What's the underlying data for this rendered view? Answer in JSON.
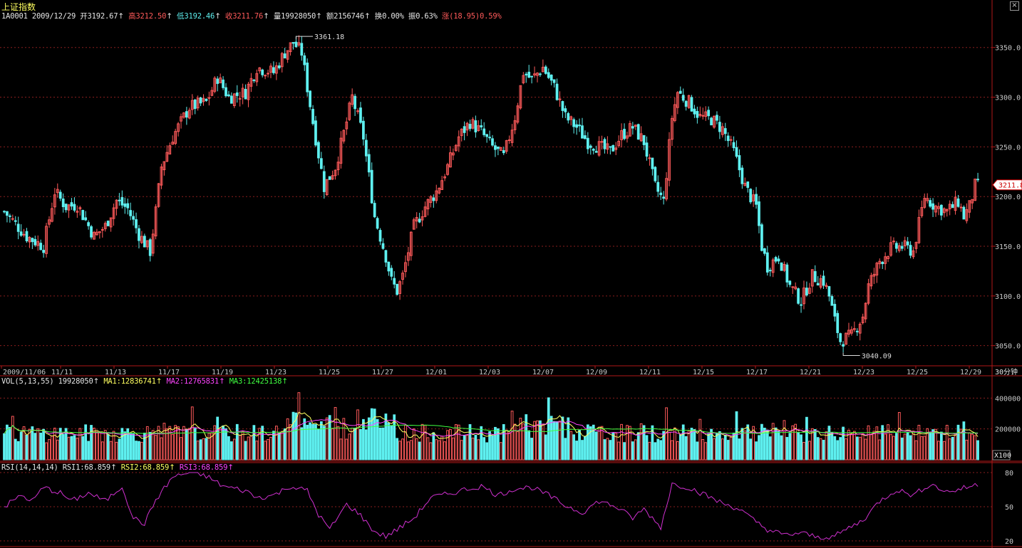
{
  "window": {
    "title": "上证指数",
    "close_glyph": "×"
  },
  "header": {
    "code": "1A0001",
    "date": "2009/12/29",
    "open_label": "开",
    "open": "3192.67",
    "high_label": "高",
    "high": "3212.50",
    "low_label": "低",
    "low": "3192.46",
    "close_label": "收",
    "close": "3211.76",
    "volume_label": "量",
    "volume": "19928050",
    "amount_label": "额",
    "amount": "2156746",
    "turnover_label": "换",
    "turnover": "0.00%",
    "amplitude_label": "振",
    "amplitude": "0.63%",
    "change_label": "涨",
    "change": "(18.95)",
    "change_pct": "0.59%",
    "up_arrow": "↑"
  },
  "price_panel": {
    "y_ticks": [
      "3350.0",
      "3300.0",
      "3250.0",
      "3200.0",
      "3150.0",
      "3100.0",
      "3050.0"
    ],
    "ylim": [
      3040,
      3361
    ],
    "current_price_tag": "3211.8",
    "max_annotation": "3361.18",
    "min_annotation": "3040.09",
    "x_labels": [
      "2009/11/06",
      "11/11",
      "11/13",
      "11/17",
      "11/19",
      "11/23",
      "11/25",
      "11/27",
      "12/01",
      "12/03",
      "12/07",
      "12/09",
      "12/11",
      "12/15",
      "12/17",
      "12/21",
      "12/23",
      "12/25",
      "12/29"
    ],
    "period_label": "30分钟"
  },
  "volume_panel": {
    "indicator": "VOL(5,13,55)",
    "value": "19928050",
    "ma1_label": "MA1:",
    "ma1": "12836741",
    "ma2_label": "MA2:",
    "ma2": "12765831",
    "ma3_label": "MA3:",
    "ma3": "12425138",
    "y_ticks": [
      "400000",
      "200000"
    ],
    "unit_label": "X100",
    "zero_label": "0"
  },
  "rsi_panel": {
    "indicator": "RSI(14,14,14)",
    "rsi1_label": "RSI1:",
    "rsi1": "68.859",
    "rsi2_label": "RSI2:",
    "rsi2": "68.859",
    "rsi3_label": "RSI3:",
    "rsi3": "68.859",
    "y_ticks": [
      "80",
      "50",
      "20"
    ]
  },
  "colors": {
    "up": "#ff5a5a",
    "down": "#5ef0f0",
    "grid": "#8a1e1e",
    "frame": "#b01818",
    "ma1": "#ffff60",
    "ma2": "#ff44ff",
    "ma3": "#40ff40",
    "rsi": "#d030d0"
  },
  "chart_data": {
    "type": "candlestick",
    "price_anchors": [
      [
        0,
        3185
      ],
      [
        8,
        3160
      ],
      [
        14,
        3150
      ],
      [
        18,
        3205
      ],
      [
        22,
        3190
      ],
      [
        26,
        3192
      ],
      [
        32,
        3160
      ],
      [
        36,
        3170
      ],
      [
        40,
        3196
      ],
      [
        44,
        3188
      ],
      [
        48,
        3162
      ],
      [
        52,
        3145
      ],
      [
        54,
        3185
      ],
      [
        56,
        3230
      ],
      [
        60,
        3260
      ],
      [
        66,
        3290
      ],
      [
        72,
        3295
      ],
      [
        76,
        3320
      ],
      [
        80,
        3300
      ],
      [
        86,
        3305
      ],
      [
        90,
        3330
      ],
      [
        96,
        3325
      ],
      [
        100,
        3345
      ],
      [
        103,
        3355
      ],
      [
        106,
        3345
      ],
      [
        110,
        3275
      ],
      [
        114,
        3210
      ],
      [
        118,
        3230
      ],
      [
        122,
        3275
      ],
      [
        124,
        3300
      ],
      [
        128,
        3260
      ],
      [
        132,
        3180
      ],
      [
        136,
        3140
      ],
      [
        138,
        3115
      ],
      [
        140,
        3105
      ],
      [
        142,
        3120
      ],
      [
        146,
        3170
      ],
      [
        150,
        3190
      ],
      [
        154,
        3205
      ],
      [
        158,
        3230
      ],
      [
        162,
        3260
      ],
      [
        166,
        3275
      ],
      [
        170,
        3265
      ],
      [
        174,
        3250
      ],
      [
        178,
        3240
      ],
      [
        182,
        3280
      ],
      [
        185,
        3325
      ],
      [
        188,
        3318
      ],
      [
        192,
        3330
      ],
      [
        196,
        3310
      ],
      [
        200,
        3280
      ],
      [
        204,
        3270
      ],
      [
        208,
        3255
      ],
      [
        212,
        3250
      ],
      [
        216,
        3245
      ],
      [
        220,
        3262
      ],
      [
        224,
        3270
      ],
      [
        228,
        3255
      ],
      [
        232,
        3210
      ],
      [
        235,
        3195
      ],
      [
        238,
        3280
      ],
      [
        240,
        3305
      ],
      [
        244,
        3295
      ],
      [
        248,
        3280
      ],
      [
        252,
        3278
      ],
      [
        256,
        3268
      ],
      [
        260,
        3245
      ],
      [
        264,
        3210
      ],
      [
        268,
        3190
      ],
      [
        270,
        3150
      ],
      [
        272,
        3130
      ],
      [
        276,
        3140
      ],
      [
        280,
        3110
      ],
      [
        284,
        3095
      ],
      [
        288,
        3120
      ],
      [
        292,
        3115
      ],
      [
        294,
        3100
      ],
      [
        296,
        3075
      ],
      [
        298,
        3055
      ],
      [
        302,
        3060
      ],
      [
        306,
        3080
      ],
      [
        308,
        3110
      ],
      [
        312,
        3135
      ],
      [
        316,
        3148
      ],
      [
        320,
        3150
      ],
      [
        324,
        3145
      ],
      [
        328,
        3200
      ],
      [
        332,
        3190
      ],
      [
        336,
        3185
      ],
      [
        340,
        3195
      ],
      [
        342,
        3180
      ],
      [
        344,
        3190
      ],
      [
        346,
        3211
      ]
    ],
    "annotations": {
      "max": 3361.18,
      "min": 3040.09
    },
    "volume_ylim": [
      0,
      480000
    ],
    "rsi_ylim": [
      20,
      80
    ],
    "rsi_anchors": [
      [
        0,
        50
      ],
      [
        6,
        60
      ],
      [
        10,
        55
      ],
      [
        14,
        67
      ],
      [
        20,
        62
      ],
      [
        24,
        55
      ],
      [
        30,
        62
      ],
      [
        36,
        55
      ],
      [
        42,
        68
      ],
      [
        46,
        40
      ],
      [
        50,
        35
      ],
      [
        54,
        56
      ],
      [
        60,
        76
      ],
      [
        66,
        80
      ],
      [
        72,
        77
      ],
      [
        78,
        68
      ],
      [
        86,
        64
      ],
      [
        90,
        58
      ],
      [
        96,
        60
      ],
      [
        102,
        68
      ],
      [
        108,
        64
      ],
      [
        112,
        43
      ],
      [
        116,
        30
      ],
      [
        122,
        52
      ],
      [
        126,
        45
      ],
      [
        132,
        28
      ],
      [
        136,
        24
      ],
      [
        140,
        30
      ],
      [
        146,
        40
      ],
      [
        152,
        58
      ],
      [
        158,
        61
      ],
      [
        164,
        65
      ],
      [
        170,
        68
      ],
      [
        176,
        60
      ],
      [
        182,
        66
      ],
      [
        188,
        67
      ],
      [
        194,
        60
      ],
      [
        200,
        51
      ],
      [
        206,
        45
      ],
      [
        212,
        55
      ],
      [
        218,
        50
      ],
      [
        224,
        40
      ],
      [
        228,
        48
      ],
      [
        234,
        32
      ],
      [
        238,
        70
      ],
      [
        244,
        67
      ],
      [
        250,
        60
      ],
      [
        256,
        53
      ],
      [
        262,
        48
      ],
      [
        266,
        40
      ],
      [
        272,
        30
      ],
      [
        278,
        25
      ],
      [
        284,
        27
      ],
      [
        290,
        23
      ],
      [
        296,
        24
      ],
      [
        300,
        30
      ],
      [
        306,
        38
      ],
      [
        312,
        55
      ],
      [
        318,
        65
      ],
      [
        324,
        60
      ],
      [
        330,
        70
      ],
      [
        336,
        63
      ],
      [
        340,
        65
      ],
      [
        346,
        69
      ]
    ]
  }
}
